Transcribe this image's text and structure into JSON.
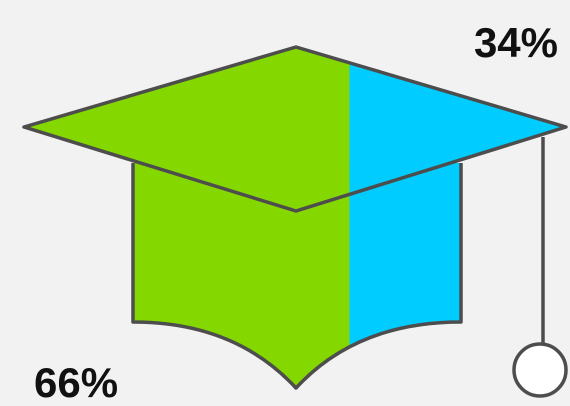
{
  "chart_data": {
    "type": "pictorial-bar",
    "shape": "graduation-cap",
    "series": [
      {
        "value": 66,
        "label": "66%",
        "color": "#84d800"
      },
      {
        "value": 34,
        "label": "34%",
        "color": "#00ccff"
      }
    ],
    "outline_color": "#4d4d4d",
    "tassel_fill": "#ffffff"
  }
}
